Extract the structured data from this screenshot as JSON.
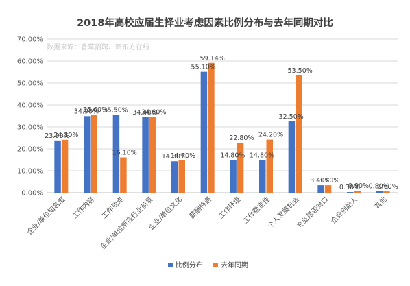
{
  "chart_data": {
    "type": "bar",
    "title": "2018年高校应届生择业考虑因素比例分布与去年同期对比",
    "source_note": "数据来源：香草招聘、新东方在线",
    "categories": [
      "企业/单位知名度",
      "工作内容",
      "工作地点",
      "企业/单位所在行业前景",
      "企业/单位文化",
      "薪酬待遇",
      "工作环境",
      "工作稳定性",
      "个人发展机会",
      "专业是否对口",
      "企业创始人",
      "其他"
    ],
    "series": [
      {
        "name": "比例分布",
        "color": "#4472c4",
        "values": [
          23.8,
          34.9,
          35.5,
          34.4,
          14.3,
          55.1,
          14.8,
          14.8,
          32.5,
          3.4,
          0.3,
          0.8
        ],
        "labels": [
          "23.80%",
          "34.90%",
          "35.50%",
          "34.40%",
          "14.30%",
          "55.10%",
          "14.80%",
          "14.80%",
          "32.50%",
          "3.40%",
          "0.30%",
          "0.80%"
        ]
      },
      {
        "name": "去年同期",
        "color": "#ed7d31",
        "values": [
          24.1,
          35.6,
          16.1,
          34.6,
          14.7,
          59.14,
          22.8,
          24.2,
          53.5,
          3.4,
          0.9,
          0.6
        ],
        "labels": [
          "24.10%",
          "35.60%",
          "16.10%",
          "34.60%",
          "14.70%",
          "59.14%",
          "22.80%",
          "24.20%",
          "53.50%",
          "3.40%",
          "0.90%",
          "0.60%"
        ]
      }
    ],
    "yticks": [
      "0.00%",
      "10.00%",
      "20.00%",
      "30.00%",
      "40.00%",
      "50.00%",
      "60.00%",
      "70.00%"
    ],
    "ylim": [
      0,
      70
    ],
    "grid": true,
    "legend_position": "bottom"
  }
}
